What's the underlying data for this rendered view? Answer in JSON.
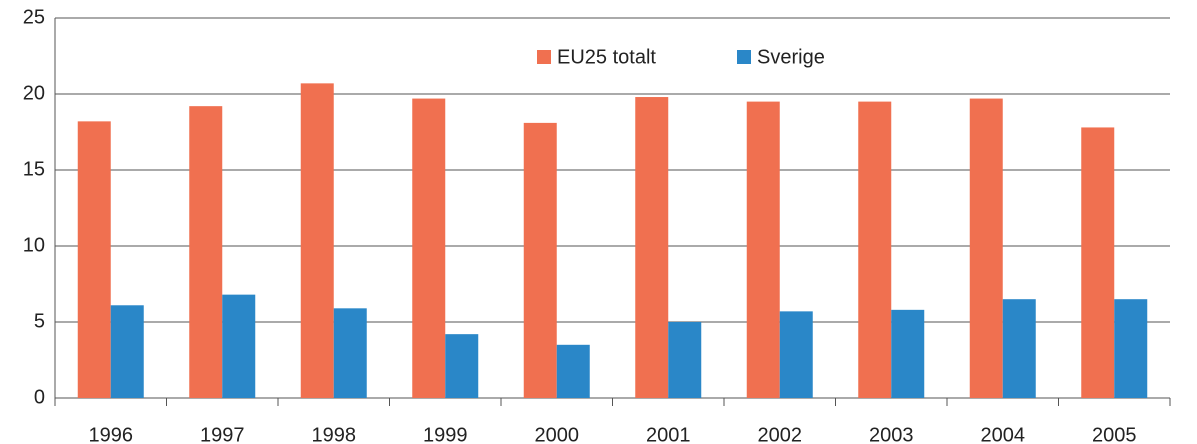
{
  "chart_data": {
    "type": "bar",
    "categories": [
      "1996",
      "1997",
      "1998",
      "1999",
      "2000",
      "2001",
      "2002",
      "2003",
      "2004",
      "2005"
    ],
    "series": [
      {
        "name": "EU25 totalt",
        "color": "#f07050",
        "values": [
          18.2,
          19.2,
          20.7,
          19.7,
          18.1,
          19.8,
          19.5,
          19.5,
          19.7,
          17.8
        ]
      },
      {
        "name": "Sverige",
        "color": "#2a87c8",
        "values": [
          6.1,
          6.8,
          5.9,
          4.2,
          3.5,
          5.0,
          5.7,
          5.8,
          6.5,
          6.5
        ]
      }
    ],
    "ylim": [
      0,
      25
    ],
    "yticks": [
      0,
      5,
      10,
      15,
      20,
      25
    ],
    "grid": true
  }
}
